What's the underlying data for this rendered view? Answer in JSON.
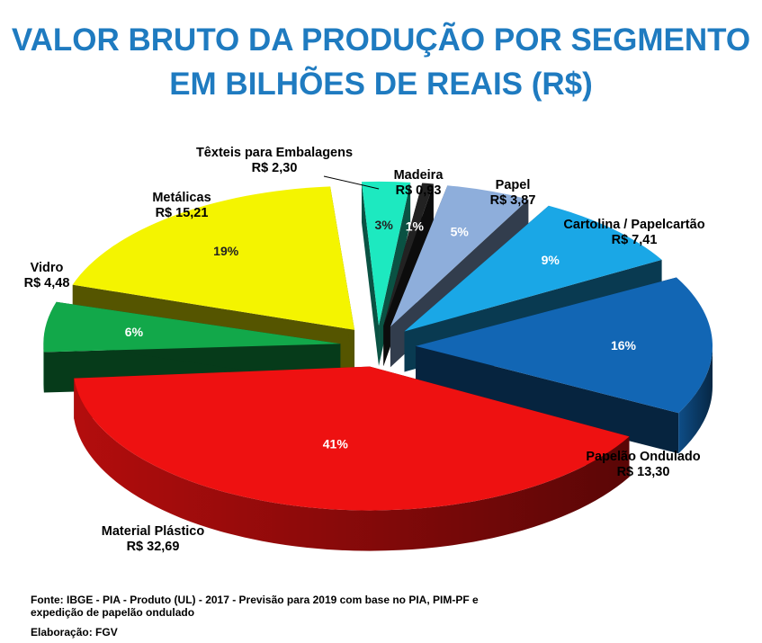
{
  "title_line1": "VALOR  BRUTO DA PRODUÇÃO POR SEGMENTO",
  "title_line2": "EM BILHÕES DE REAIS (R$)",
  "source_line1": "Fonte: IBGE  - PIA - Produto (UL) - 2017  - Previsão para 2019 com base no PIA, PIM-PF e",
  "source_line2": "expedição  de papelão ondulado",
  "credit": "Elaboração: FGV",
  "chart_data": {
    "type": "pie",
    "style": "3d-exploded",
    "slices": [
      {
        "name": "Têxteis para Embalagens",
        "value": "R$ 2,30",
        "percent": "3%",
        "color": "#1de9c0"
      },
      {
        "name": "Madeira",
        "value": "R$ 0,93",
        "percent": "1%",
        "color": "#222222"
      },
      {
        "name": "Papel",
        "value": "R$ 3,87",
        "percent": "5%",
        "color": "#8eaedb"
      },
      {
        "name": "Cartolina / Papelcartão",
        "value": "R$ 7,41",
        "percent": "9%",
        "color": "#1aa7e6"
      },
      {
        "name": "Papelão Ondulado",
        "value": "R$ 13,30",
        "percent": "16%",
        "color": "#1266b4"
      },
      {
        "name": "Material Plástico",
        "value": "R$ 32,69",
        "percent": "41%",
        "color": "#ee1111"
      },
      {
        "name": "Vidro",
        "value": "R$ 4,48",
        "percent": "6%",
        "color": "#12a84a"
      },
      {
        "name": "Metálicas",
        "value": "R$ 15,21",
        "percent": "19%",
        "color": "#f4f400"
      }
    ]
  }
}
